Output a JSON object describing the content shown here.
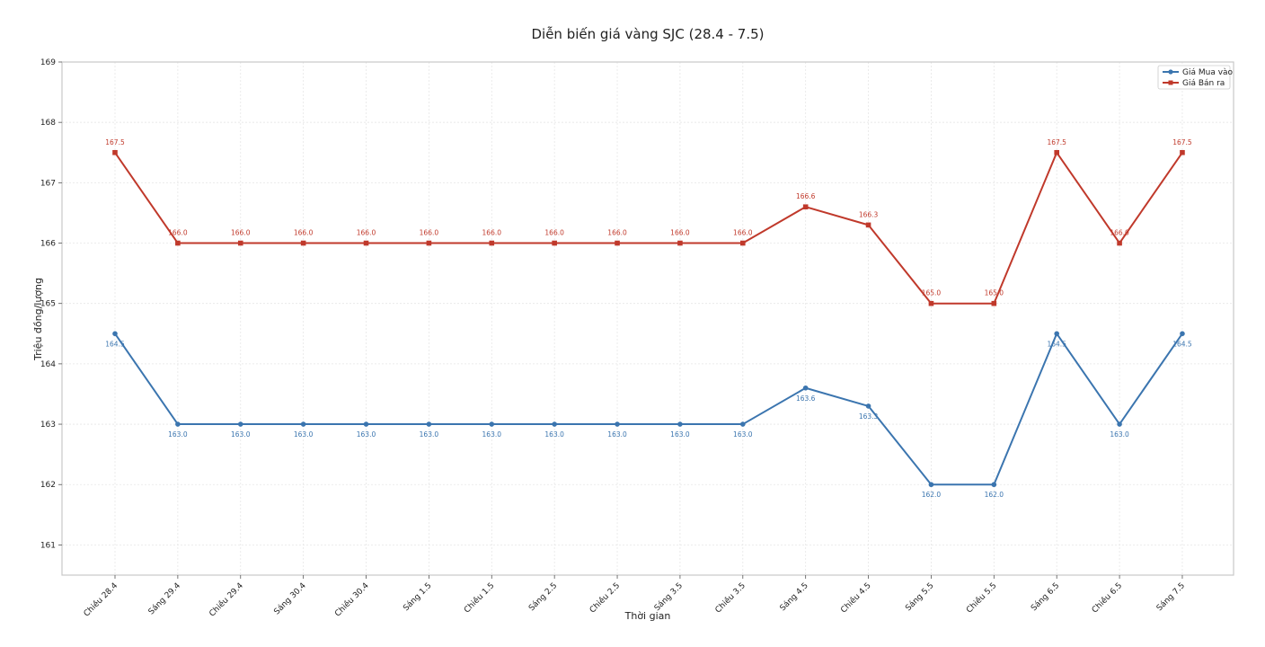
{
  "chart_data": {
    "type": "line",
    "title": "Diễn biến giá vàng SJC (28.4 - 7.5)",
    "xlabel": "Thời gian",
    "ylabel": "Triệu đồng/lượng",
    "ylim": [
      160.5,
      169
    ],
    "yticks": [
      161,
      162,
      163,
      164,
      165,
      166,
      167,
      168,
      169
    ],
    "grid": true,
    "legend_position": "top-right",
    "categories": [
      "Chiều 28.4",
      "Sáng 29.4",
      "Chiều 29.4",
      "Sáng 30.4",
      "Chiều 30.4",
      "Sáng 1.5",
      "Chiều 1.5",
      "Sáng 2.5",
      "Chiều 2.5",
      "Sáng 3.5",
      "Chiều 3.5",
      "Sáng 4.5",
      "Chiều 4.5",
      "Sáng 5.5",
      "Chiều 5.5",
      "Sáng 6.5",
      "Chiều 6.5",
      "Sáng 7.5"
    ],
    "series": [
      {
        "name": "Giá Mua vào",
        "color": "#3b75af",
        "marker": "circle",
        "label_position": "below",
        "values": [
          164.5,
          163.0,
          163.0,
          163.0,
          163.0,
          163.0,
          163.0,
          163.0,
          163.0,
          163.0,
          163.0,
          163.6,
          163.3,
          162.0,
          162.0,
          164.5,
          163.0,
          164.5
        ],
        "labels": [
          "164.5",
          "163.0",
          "163.0",
          "163.0",
          "163.0",
          "163.0",
          "163.0",
          "163.0",
          "163.0",
          "163.0",
          "163.0",
          "163.6",
          "163.3",
          "162.0",
          "162.0",
          "164.5",
          "163.0",
          "164.5"
        ]
      },
      {
        "name": "Giá Bán ra",
        "color": "#c0392b",
        "marker": "square",
        "label_position": "above",
        "values": [
          167.5,
          166.0,
          166.0,
          166.0,
          166.0,
          166.0,
          166.0,
          166.0,
          166.0,
          166.0,
          166.0,
          166.6,
          166.3,
          165.0,
          165.0,
          167.5,
          166.0,
          167.5
        ],
        "labels": [
          "167.5",
          "166.0",
          "166.0",
          "166.0",
          "166.0",
          "166.0",
          "166.0",
          "166.0",
          "166.0",
          "166.0",
          "166.0",
          "166.6",
          "166.3",
          "165.0",
          "165.0",
          "167.5",
          "166.0",
          "167.5"
        ]
      }
    ]
  }
}
